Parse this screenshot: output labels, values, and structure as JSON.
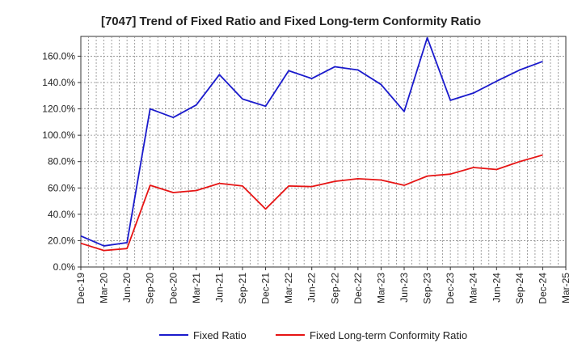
{
  "chart_data": {
    "type": "line",
    "title": "[7047]  Trend of Fixed Ratio and Fixed Long-term Conformity Ratio",
    "xlabel": "",
    "ylabel": "",
    "x_ticks": [
      "Dec-19",
      "Mar-20",
      "Jun-20",
      "Sep-20",
      "Dec-20",
      "Mar-21",
      "Jun-21",
      "Sep-21",
      "Dec-21",
      "Mar-22",
      "Jun-22",
      "Sep-22",
      "Dec-22",
      "Mar-23",
      "Jun-23",
      "Sep-23",
      "Dec-23",
      "Mar-24",
      "Jun-24",
      "Sep-24",
      "Dec-24",
      "Mar-25"
    ],
    "y_ticks": [
      "0.0%",
      "20.0%",
      "40.0%",
      "60.0%",
      "80.0%",
      "100.0%",
      "120.0%",
      "140.0%",
      "160.0%"
    ],
    "ylim": [
      0,
      175
    ],
    "grid": true,
    "legend_position": "bottom",
    "x": [
      "Dec-19",
      "Mar-20",
      "Jun-20",
      "Sep-20",
      "Dec-20",
      "Mar-21",
      "Jun-21",
      "Sep-21",
      "Dec-21",
      "Mar-22",
      "Jun-22",
      "Sep-22",
      "Dec-22",
      "Mar-23",
      "Jun-23",
      "Sep-23",
      "Dec-23",
      "Mar-24",
      "Jun-24",
      "Sep-24",
      "Dec-24"
    ],
    "series": [
      {
        "name": "Fixed Ratio",
        "color": "#1a1acc",
        "values": [
          23.5,
          16.0,
          18.5,
          120.0,
          113.5,
          123.0,
          146.0,
          127.5,
          122.0,
          149.0,
          143.0,
          152.0,
          149.5,
          138.5,
          118.0,
          174.0,
          126.5,
          132.0,
          141.0,
          149.5,
          156.0
        ]
      },
      {
        "name": "Fixed Long-term Conformity Ratio",
        "color": "#e61414",
        "values": [
          18.0,
          12.5,
          14.0,
          62.0,
          56.5,
          58.0,
          63.5,
          61.5,
          44.0,
          61.5,
          61.0,
          65.0,
          67.0,
          66.0,
          62.0,
          69.0,
          70.5,
          75.5,
          74.0,
          80.0,
          85.0
        ]
      }
    ]
  }
}
